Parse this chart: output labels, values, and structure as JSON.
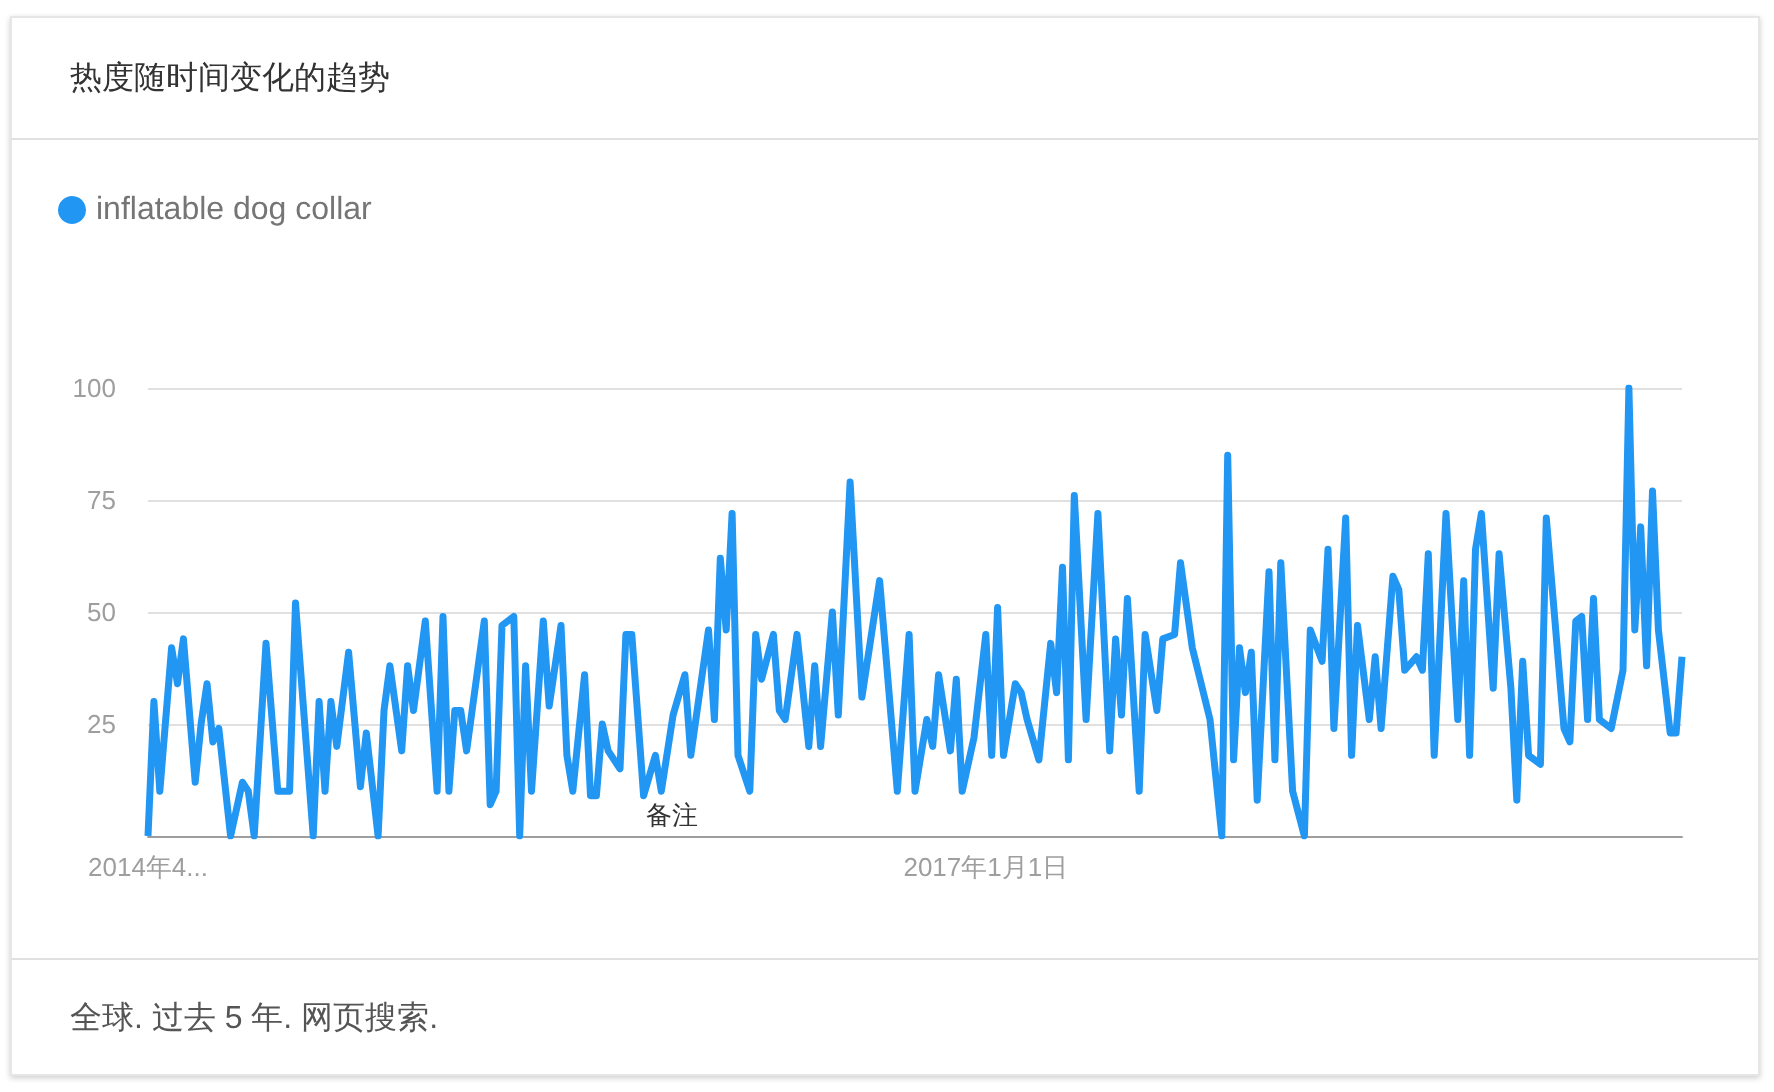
{
  "chart_data": {
    "type": "line",
    "title": "热度随时间变化的趋势",
    "annotations": [
      "全球. 过去 5 年. 网页搜索.",
      "备注"
    ],
    "x": [
      "2014-04-13",
      "2014-04-20",
      "2014-04-27",
      "2014-05-11",
      "2014-05-18",
      "2014-05-25",
      "2014-06-08",
      "2014-06-15",
      "2014-06-22",
      "2014-06-29",
      "2014-07-06",
      "2014-07-20",
      "2014-08-03",
      "2014-08-10",
      "2014-08-17",
      "2014-08-31",
      "2014-09-14",
      "2014-09-28",
      "2014-10-05",
      "2014-10-26",
      "2014-11-02",
      "2014-11-09",
      "2014-11-16",
      "2014-11-23",
      "2014-12-07",
      "2014-12-21",
      "2014-12-28",
      "2015-01-11",
      "2015-01-18",
      "2015-01-25",
      "2015-02-08",
      "2015-02-15",
      "2015-02-22",
      "2015-03-08",
      "2015-03-22",
      "2015-03-29",
      "2015-04-05",
      "2015-04-12",
      "2015-04-19",
      "2015-04-26",
      "2015-05-17",
      "2015-05-24",
      "2015-05-31",
      "2015-06-07",
      "2015-06-21",
      "2015-06-28",
      "2015-07-05",
      "2015-07-12",
      "2015-07-26",
      "2015-08-02",
      "2015-08-16",
      "2015-08-23",
      "2015-08-30",
      "2015-09-13",
      "2015-09-20",
      "2015-09-27",
      "2015-10-04",
      "2015-10-11",
      "2015-10-25",
      "2015-11-01",
      "2015-11-08",
      "2015-11-22",
      "2015-12-06",
      "2015-12-13",
      "2015-12-27",
      "2016-01-10",
      "2016-01-17",
      "2016-02-07",
      "2016-02-14",
      "2016-02-21",
      "2016-02-28",
      "2016-03-06",
      "2016-03-13",
      "2016-03-27",
      "2016-04-03",
      "2016-04-10",
      "2016-04-24",
      "2016-05-01",
      "2016-05-08",
      "2016-05-22",
      "2016-06-05",
      "2016-06-12",
      "2016-06-19",
      "2016-07-03",
      "2016-07-10",
      "2016-07-24",
      "2016-08-07",
      "2016-08-28",
      "2016-09-18",
      "2016-10-02",
      "2016-10-09",
      "2016-10-23",
      "2016-10-30",
      "2016-11-06",
      "2016-11-20",
      "2016-11-27",
      "2016-12-04",
      "2016-12-18",
      "2017-01-01",
      "2017-01-08",
      "2017-01-15",
      "2017-01-22",
      "2017-02-05",
      "2017-02-12",
      "2017-02-19",
      "2017-03-05",
      "2017-03-19",
      "2017-03-26",
      "2017-04-02",
      "2017-04-09",
      "2017-04-16",
      "2017-04-30",
      "2017-05-14",
      "2017-05-28",
      "2017-06-04",
      "2017-06-11",
      "2017-06-18",
      "2017-07-02",
      "2017-07-09",
      "2017-07-23",
      "2017-07-30",
      "2017-08-13",
      "2017-08-20",
      "2017-09-03",
      "2017-09-24",
      "2017-10-08",
      "2017-10-15",
      "2017-10-22",
      "2017-10-29",
      "2017-11-05",
      "2017-11-12",
      "2017-11-19",
      "2017-12-03",
      "2017-12-10",
      "2017-12-17",
      "2017-12-31",
      "2018-01-14",
      "2018-01-21",
      "2018-02-04",
      "2018-02-11",
      "2018-02-18",
      "2018-03-04",
      "2018-03-11",
      "2018-03-18",
      "2018-04-01",
      "2018-04-08",
      "2018-04-15",
      "2018-04-29",
      "2018-05-06",
      "2018-05-13",
      "2018-05-27",
      "2018-06-03",
      "2018-06-10",
      "2018-06-17",
      "2018-07-01",
      "2018-07-15",
      "2018-07-22",
      "2018-07-29",
      "2018-08-05",
      "2018-08-12",
      "2018-08-26",
      "2018-09-02",
      "2018-09-16",
      "2018-09-23",
      "2018-09-30",
      "2018-10-07",
      "2018-10-21",
      "2018-10-28",
      "2018-11-18",
      "2018-11-25",
      "2018-12-02",
      "2018-12-09",
      "2018-12-16",
      "2018-12-23",
      "2018-12-30",
      "2019-01-13",
      "2019-01-27",
      "2019-02-03",
      "2019-02-10",
      "2019-02-17",
      "2019-02-24",
      "2019-03-03",
      "2019-03-10",
      "2019-03-24",
      "2019-03-31",
      "2019-04-07"
    ],
    "series": [
      {
        "name": "inflatable dog collar",
        "color": "#2196f3",
        "values": [
          0,
          30,
          10,
          42,
          34,
          44,
          12,
          25,
          34,
          21,
          24,
          0,
          12,
          10,
          0,
          43,
          10,
          10,
          52,
          0,
          30,
          10,
          30,
          20,
          41,
          11,
          23,
          0,
          28,
          38,
          19,
          38,
          28,
          48,
          10,
          49,
          10,
          28,
          28,
          19,
          48,
          7,
          10,
          47,
          49,
          0,
          38,
          10,
          48,
          29,
          47,
          18,
          10,
          36,
          9,
          9,
          25,
          19,
          15,
          45,
          45,
          9,
          18,
          10,
          27,
          36,
          18,
          46,
          26,
          62,
          46,
          72,
          18,
          10,
          45,
          35,
          45,
          28,
          26,
          45,
          20,
          38,
          20,
          50,
          27,
          79,
          31,
          57,
          10,
          45,
          10,
          26,
          20,
          36,
          19,
          35,
          10,
          22,
          45,
          18,
          51,
          18,
          34,
          32,
          26,
          17,
          43,
          32,
          60,
          17,
          76,
          26,
          72,
          19,
          44,
          27,
          53,
          10,
          45,
          28,
          44,
          45,
          61,
          42,
          26,
          0,
          85,
          17,
          42,
          32,
          41,
          8,
          59,
          17,
          61,
          10,
          0,
          46,
          39,
          64,
          24,
          71,
          18,
          47,
          26,
          40,
          24,
          58,
          55,
          37,
          40,
          37,
          63,
          18,
          72,
          26,
          57,
          18,
          64,
          72,
          33,
          63,
          33,
          8,
          39,
          18,
          16,
          71,
          24,
          21,
          48,
          49,
          26,
          53,
          26,
          24,
          37,
          100,
          46,
          69,
          38,
          77,
          46,
          23,
          23,
          40
        ]
      }
    ],
    "xlim": [
      "2014-04-13",
      "2019-04-07"
    ],
    "xticks": [
      {
        "value": "2014-04-13",
        "label": "2014年4..."
      },
      {
        "value": "2017-01-01",
        "label": "2017年1月1日"
      }
    ],
    "ylim": [
      0,
      100
    ],
    "yticks": [
      25,
      50,
      75,
      100
    ],
    "grid": "y",
    "legend": "top left"
  }
}
